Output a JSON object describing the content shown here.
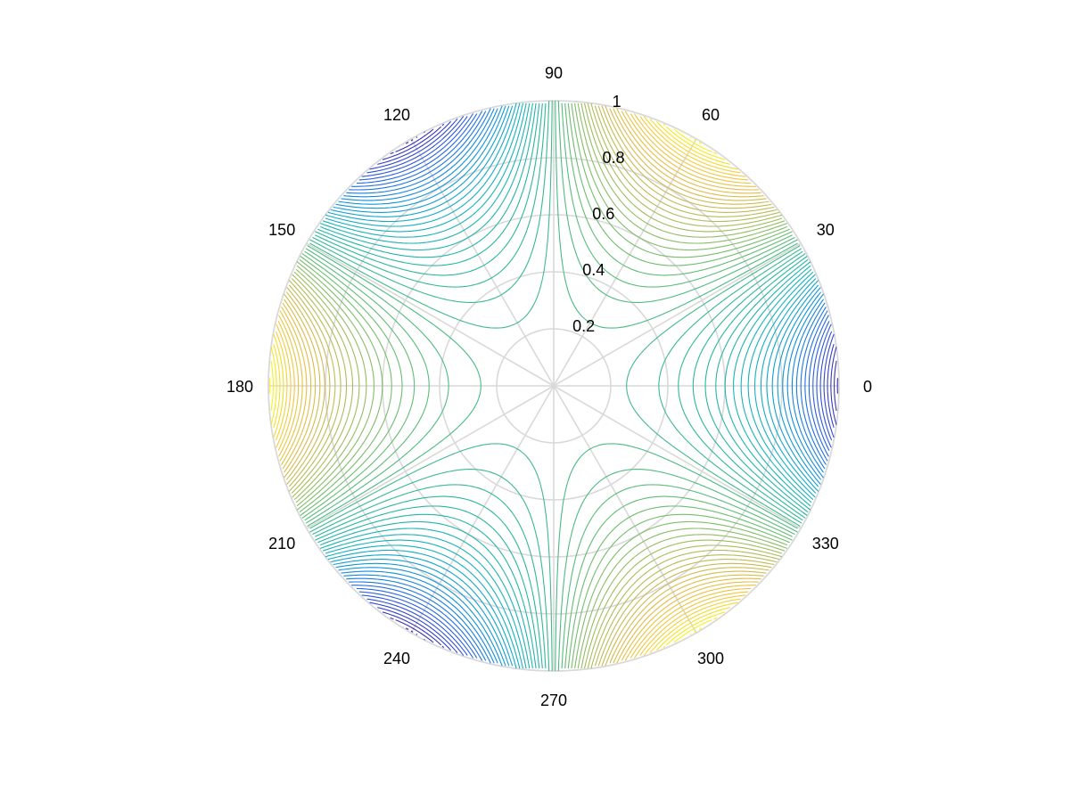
{
  "chart_data": {
    "type": "contour",
    "coordinate_system": "polar",
    "title": "",
    "rlim": [
      0,
      1
    ],
    "r_ticks": [
      {
        "value": 0.2,
        "label": "0.2"
      },
      {
        "value": 0.4,
        "label": "0.4"
      },
      {
        "value": 0.6,
        "label": "0.6"
      },
      {
        "value": 0.8,
        "label": "0.8"
      },
      {
        "value": 1.0,
        "label": "1"
      }
    ],
    "theta_ticks": [
      {
        "value": 0,
        "label": "0"
      },
      {
        "value": 30,
        "label": "30"
      },
      {
        "value": 60,
        "label": "60"
      },
      {
        "value": 90,
        "label": "90"
      },
      {
        "value": 120,
        "label": "120"
      },
      {
        "value": 150,
        "label": "150"
      },
      {
        "value": 180,
        "label": "180"
      },
      {
        "value": 210,
        "label": "210"
      },
      {
        "value": 240,
        "label": "240"
      },
      {
        "value": 270,
        "label": "270"
      },
      {
        "value": 300,
        "label": "300"
      },
      {
        "value": 330,
        "label": "330"
      }
    ],
    "function": "z = -r^3 * cos(3*theta)",
    "z_range": [
      -1,
      1
    ],
    "levels": 60,
    "grid": true,
    "colormap": [
      "#3e26a8",
      "#2c58e6",
      "#0f8de0",
      "#14b1c2",
      "#2ab79a",
      "#5ebd74",
      "#a3bd5a",
      "#d8b94b",
      "#f4c83a",
      "#f9fb0e"
    ]
  }
}
